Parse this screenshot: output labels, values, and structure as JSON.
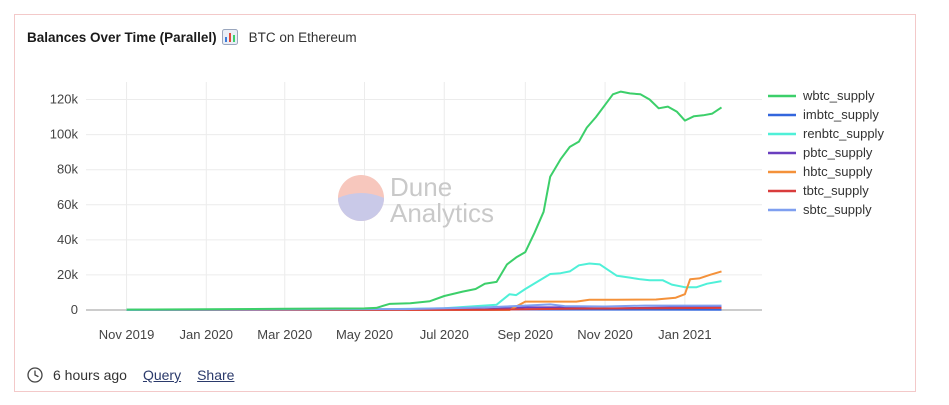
{
  "header": {
    "title": "Balances Over Time (Parallel)",
    "title_icon": "bar-chart-icon",
    "subtitle": "BTC on Ethereum"
  },
  "watermark": {
    "line1": "Dune",
    "line2": "Analytics",
    "icon": "dune-logo-icon"
  },
  "footer": {
    "time_icon": "clock-icon",
    "time_text": "6 hours ago",
    "query_link": "Query",
    "share_link": "Share"
  },
  "chart_data": {
    "type": "line",
    "x_ticks": [
      "Nov 2019",
      "Jan 2020",
      "Mar 2020",
      "May 2020",
      "Jul 2020",
      "Sep 2020",
      "Nov 2020",
      "Jan 2021"
    ],
    "x_tick_dates": [
      "2019-11-01",
      "2020-01-01",
      "2020-03-01",
      "2020-05-01",
      "2020-07-01",
      "2020-09-01",
      "2020-11-01",
      "2021-01-01"
    ],
    "xlim": [
      "2019-10-01",
      "2021-03-01"
    ],
    "y_ticks": [
      0,
      20000,
      40000,
      60000,
      80000,
      100000,
      120000
    ],
    "y_tick_labels": [
      "0",
      "20k",
      "40k",
      "60k",
      "80k",
      "100k",
      "120k"
    ],
    "ylim": [
      0,
      130000
    ],
    "grid": true,
    "legend_position": "right",
    "series": [
      {
        "name": "wbtc_supply",
        "color": "#3ccf6a",
        "points": [
          [
            "2019-11-01",
            200
          ],
          [
            "2020-01-01",
            400
          ],
          [
            "2020-03-01",
            700
          ],
          [
            "2020-05-01",
            900
          ],
          [
            "2020-05-10",
            1200
          ],
          [
            "2020-05-20",
            3500
          ],
          [
            "2020-06-05",
            3800
          ],
          [
            "2020-06-20",
            5000
          ],
          [
            "2020-07-01",
            8000
          ],
          [
            "2020-07-15",
            10500
          ],
          [
            "2020-07-25",
            12000
          ],
          [
            "2020-08-01",
            15000
          ],
          [
            "2020-08-10",
            16000
          ],
          [
            "2020-08-18",
            26000
          ],
          [
            "2020-08-25",
            30000
          ],
          [
            "2020-09-01",
            33000
          ],
          [
            "2020-09-08",
            44000
          ],
          [
            "2020-09-15",
            56000
          ],
          [
            "2020-09-20",
            76000
          ],
          [
            "2020-09-28",
            86000
          ],
          [
            "2020-10-05",
            93000
          ],
          [
            "2020-10-12",
            96000
          ],
          [
            "2020-10-18",
            104000
          ],
          [
            "2020-10-25",
            110000
          ],
          [
            "2020-11-01",
            117000
          ],
          [
            "2020-11-07",
            123000
          ],
          [
            "2020-11-13",
            124500
          ],
          [
            "2020-11-20",
            123500
          ],
          [
            "2020-11-28",
            123000
          ],
          [
            "2020-12-05",
            120000
          ],
          [
            "2020-12-12",
            115000
          ],
          [
            "2020-12-19",
            116000
          ],
          [
            "2020-12-26",
            113000
          ],
          [
            "2021-01-01",
            108000
          ],
          [
            "2021-01-08",
            110500
          ],
          [
            "2021-01-15",
            111000
          ],
          [
            "2021-01-22",
            112000
          ],
          [
            "2021-01-29",
            115500
          ]
        ]
      },
      {
        "name": "imbtc_supply",
        "color": "#3366dd",
        "points": [
          [
            "2019-11-01",
            100
          ],
          [
            "2020-03-01",
            150
          ],
          [
            "2020-06-01",
            200
          ],
          [
            "2020-09-01",
            300
          ],
          [
            "2020-12-01",
            200
          ],
          [
            "2021-01-29",
            150
          ]
        ]
      },
      {
        "name": "renbtc_supply",
        "color": "#4ff0d8",
        "points": [
          [
            "2019-11-01",
            0
          ],
          [
            "2020-05-01",
            300
          ],
          [
            "2020-07-01",
            1000
          ],
          [
            "2020-08-10",
            3000
          ],
          [
            "2020-08-20",
            9000
          ],
          [
            "2020-08-25",
            8500
          ],
          [
            "2020-09-01",
            12000
          ],
          [
            "2020-09-10",
            16000
          ],
          [
            "2020-09-20",
            20500
          ],
          [
            "2020-09-28",
            21000
          ],
          [
            "2020-10-05",
            22000
          ],
          [
            "2020-10-12",
            25500
          ],
          [
            "2020-10-20",
            26500
          ],
          [
            "2020-10-28",
            26000
          ],
          [
            "2020-11-03",
            23000
          ],
          [
            "2020-11-10",
            19500
          ],
          [
            "2020-11-20",
            18500
          ],
          [
            "2020-11-28",
            17500
          ],
          [
            "2020-12-05",
            17000
          ],
          [
            "2020-12-15",
            17000
          ],
          [
            "2020-12-22",
            14500
          ],
          [
            "2021-01-01",
            13000
          ],
          [
            "2021-01-10",
            13000
          ],
          [
            "2021-01-18",
            15000
          ],
          [
            "2021-01-29",
            16500
          ]
        ]
      },
      {
        "name": "pbtc_supply",
        "color": "#6a3fbf",
        "points": [
          [
            "2019-11-01",
            0
          ],
          [
            "2020-05-01",
            50
          ],
          [
            "2020-08-01",
            400
          ],
          [
            "2020-09-01",
            1500
          ],
          [
            "2020-10-01",
            1500
          ],
          [
            "2020-11-01",
            800
          ],
          [
            "2020-12-01",
            1200
          ],
          [
            "2021-01-29",
            1800
          ]
        ]
      },
      {
        "name": "hbtc_supply",
        "color": "#f4913a",
        "points": [
          [
            "2019-11-01",
            0
          ],
          [
            "2020-08-20",
            0
          ],
          [
            "2020-09-01",
            4800
          ],
          [
            "2020-10-10",
            4800
          ],
          [
            "2020-10-20",
            5800
          ],
          [
            "2020-11-10",
            5900
          ],
          [
            "2020-12-10",
            6000
          ],
          [
            "2020-12-25",
            7000
          ],
          [
            "2021-01-01",
            9000
          ],
          [
            "2021-01-05",
            17500
          ],
          [
            "2021-01-12",
            18000
          ],
          [
            "2021-01-20",
            20000
          ],
          [
            "2021-01-29",
            22000
          ]
        ]
      },
      {
        "name": "tbtc_supply",
        "color": "#d93c3c",
        "points": [
          [
            "2019-11-01",
            0
          ],
          [
            "2020-08-01",
            100
          ],
          [
            "2020-09-10",
            500
          ],
          [
            "2020-10-10",
            800
          ],
          [
            "2020-11-10",
            900
          ],
          [
            "2020-12-10",
            1000
          ],
          [
            "2021-01-29",
            1200
          ]
        ]
      },
      {
        "name": "sbtc_supply",
        "color": "#7f9ff0",
        "points": [
          [
            "2019-11-01",
            0
          ],
          [
            "2020-06-01",
            500
          ],
          [
            "2020-08-01",
            1500
          ],
          [
            "2020-09-01",
            2500
          ],
          [
            "2020-09-20",
            3200
          ],
          [
            "2020-10-01",
            2200
          ],
          [
            "2020-11-01",
            2000
          ],
          [
            "2020-12-01",
            2500
          ],
          [
            "2021-01-29",
            2500
          ]
        ]
      }
    ]
  }
}
